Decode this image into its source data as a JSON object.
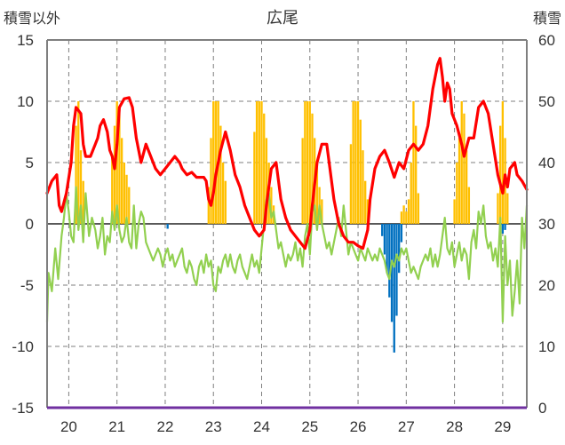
{
  "chart_data": {
    "type": "bar+line",
    "title": "広尾",
    "ylabel_left": "積雪以外",
    "ylabel_right": "積雪",
    "ylim_left": [
      -15,
      15
    ],
    "ylim_right": [
      0,
      60
    ],
    "yticks_left": [
      "15",
      "10",
      "5",
      "0",
      "-5",
      "-10",
      "-15"
    ],
    "yticks_right": [
      "60",
      "50",
      "40",
      "30",
      "20",
      "10",
      "0"
    ],
    "x_range": [
      19.55,
      29.5
    ],
    "xticks": [
      "20",
      "21",
      "22",
      "23",
      "24",
      "25",
      "26",
      "27",
      "28",
      "29"
    ],
    "grid": "dashed",
    "colors": {
      "red_line": "#ff0000",
      "green_line": "#92d050",
      "orange_bars": "#ffc000",
      "blue_bars": "#0070c0",
      "baseline": "#7030a0",
      "frame": "#7f7f7f"
    },
    "red_line": [
      [
        19.55,
        2.5
      ],
      [
        19.65,
        3.5
      ],
      [
        19.75,
        4.0
      ],
      [
        19.8,
        1.5
      ],
      [
        19.85,
        1.0
      ],
      [
        19.95,
        2.5
      ],
      [
        20.05,
        5.0
      ],
      [
        20.1,
        8.0
      ],
      [
        20.15,
        9.5
      ],
      [
        20.25,
        9.0
      ],
      [
        20.3,
        6.5
      ],
      [
        20.35,
        5.5
      ],
      [
        20.45,
        5.5
      ],
      [
        20.55,
        6.5
      ],
      [
        20.6,
        7.0
      ],
      [
        20.65,
        8.0
      ],
      [
        20.72,
        8.5
      ],
      [
        20.8,
        7.5
      ],
      [
        20.85,
        6.0
      ],
      [
        20.9,
        5.5
      ],
      [
        20.95,
        4.5
      ],
      [
        21.0,
        6.5
      ],
      [
        21.05,
        9.5
      ],
      [
        21.15,
        10.2
      ],
      [
        21.25,
        10.3
      ],
      [
        21.32,
        9.5
      ],
      [
        21.4,
        7.0
      ],
      [
        21.45,
        6.0
      ],
      [
        21.5,
        5.0
      ],
      [
        21.6,
        6.5
      ],
      [
        21.7,
        5.5
      ],
      [
        21.8,
        4.5
      ],
      [
        21.9,
        4.0
      ],
      [
        22.0,
        4.5
      ],
      [
        22.1,
        5.0
      ],
      [
        22.2,
        5.5
      ],
      [
        22.3,
        5.0
      ],
      [
        22.35,
        4.5
      ],
      [
        22.45,
        4.0
      ],
      [
        22.55,
        4.2
      ],
      [
        22.65,
        3.8
      ],
      [
        22.8,
        3.8
      ],
      [
        22.85,
        3.5
      ],
      [
        22.9,
        2.0
      ],
      [
        22.95,
        1.5
      ],
      [
        23.0,
        2.5
      ],
      [
        23.05,
        4.0
      ],
      [
        23.1,
        5.0
      ],
      [
        23.15,
        6.0
      ],
      [
        23.25,
        7.5
      ],
      [
        23.35,
        6.0
      ],
      [
        23.45,
        4.0
      ],
      [
        23.55,
        3.0
      ],
      [
        23.65,
        1.5
      ],
      [
        23.75,
        0.5
      ],
      [
        23.85,
        -0.5
      ],
      [
        23.95,
        -1.0
      ],
      [
        24.05,
        -0.5
      ],
      [
        24.1,
        1.5
      ],
      [
        24.15,
        3.0
      ],
      [
        24.2,
        4.5
      ],
      [
        24.3,
        5.0
      ],
      [
        24.35,
        3.5
      ],
      [
        24.4,
        2.0
      ],
      [
        24.5,
        0.5
      ],
      [
        24.6,
        -0.5
      ],
      [
        24.7,
        -1.0
      ],
      [
        24.8,
        -1.5
      ],
      [
        24.9,
        -2.0
      ],
      [
        25.0,
        -0.5
      ],
      [
        25.05,
        1.5
      ],
      [
        25.15,
        5.0
      ],
      [
        25.25,
        6.5
      ],
      [
        25.35,
        6.5
      ],
      [
        25.4,
        5.0
      ],
      [
        25.5,
        2.0
      ],
      [
        25.6,
        0.0
      ],
      [
        25.7,
        -1.0
      ],
      [
        25.8,
        -1.5
      ],
      [
        25.9,
        -1.5
      ],
      [
        26.0,
        -1.8
      ],
      [
        26.1,
        -2.0
      ],
      [
        26.2,
        -0.5
      ],
      [
        26.25,
        2.0
      ],
      [
        26.35,
        4.5
      ],
      [
        26.45,
        5.5
      ],
      [
        26.55,
        6.0
      ],
      [
        26.65,
        5.0
      ],
      [
        26.75,
        3.8
      ],
      [
        26.85,
        5.0
      ],
      [
        26.95,
        4.5
      ],
      [
        27.05,
        6.0
      ],
      [
        27.15,
        6.5
      ],
      [
        27.25,
        6.0
      ],
      [
        27.35,
        6.5
      ],
      [
        27.45,
        8.0
      ],
      [
        27.55,
        11.0
      ],
      [
        27.65,
        13.0
      ],
      [
        27.7,
        13.5
      ],
      [
        27.75,
        12.0
      ],
      [
        27.8,
        10.0
      ],
      [
        27.85,
        11.5
      ],
      [
        27.9,
        11.0
      ],
      [
        27.95,
        9.0
      ],
      [
        28.05,
        8.0
      ],
      [
        28.15,
        6.5
      ],
      [
        28.2,
        5.5
      ],
      [
        28.3,
        7.0
      ],
      [
        28.4,
        7.0
      ],
      [
        28.5,
        9.5
      ],
      [
        28.6,
        10.0
      ],
      [
        28.7,
        9.0
      ],
      [
        28.8,
        6.5
      ],
      [
        28.9,
        4.0
      ],
      [
        29.0,
        2.5
      ],
      [
        29.05,
        4.0
      ],
      [
        29.1,
        3.0
      ],
      [
        29.15,
        4.5
      ],
      [
        29.25,
        5.0
      ],
      [
        29.3,
        4.0
      ],
      [
        29.4,
        3.5
      ],
      [
        29.5,
        2.8
      ]
    ],
    "green_line": [
      [
        19.55,
        -8.0
      ],
      [
        19.58,
        -4.0
      ],
      [
        19.65,
        -5.5
      ],
      [
        19.72,
        -2.0
      ],
      [
        19.78,
        -4.5
      ],
      [
        19.85,
        -1.0
      ],
      [
        19.9,
        0.5
      ],
      [
        19.95,
        2.5
      ],
      [
        20.0,
        1.0
      ],
      [
        20.05,
        -1.0
      ],
      [
        20.1,
        -1.5
      ],
      [
        20.15,
        3.0
      ],
      [
        20.2,
        -0.5
      ],
      [
        20.25,
        1.5
      ],
      [
        20.3,
        -1.5
      ],
      [
        20.35,
        2.5
      ],
      [
        20.42,
        -1.0
      ],
      [
        20.48,
        0.5
      ],
      [
        20.55,
        -0.5
      ],
      [
        20.6,
        -2.0
      ],
      [
        20.65,
        -1.0
      ],
      [
        20.7,
        0.5
      ],
      [
        20.75,
        -2.5
      ],
      [
        20.8,
        -1.0
      ],
      [
        20.85,
        -1.5
      ],
      [
        20.9,
        1.0
      ],
      [
        20.95,
        -0.5
      ],
      [
        21.0,
        1.5
      ],
      [
        21.05,
        -0.5
      ],
      [
        21.1,
        -1.5
      ],
      [
        21.15,
        -1.0
      ],
      [
        21.2,
        0.5
      ],
      [
        21.25,
        -1.5
      ],
      [
        21.3,
        -2.0
      ],
      [
        21.35,
        1.5
      ],
      [
        21.4,
        -2.0
      ],
      [
        21.45,
        0.0
      ],
      [
        21.5,
        1.0
      ],
      [
        21.55,
        0.5
      ],
      [
        21.6,
        -1.5
      ],
      [
        21.65,
        -2.0
      ],
      [
        21.7,
        -2.5
      ],
      [
        21.75,
        -3.0
      ],
      [
        21.8,
        -2.5
      ],
      [
        21.85,
        -2.0
      ],
      [
        21.9,
        -2.5
      ],
      [
        21.95,
        -3.5
      ],
      [
        22.0,
        -2.5
      ],
      [
        22.05,
        -2.0
      ],
      [
        22.1,
        -3.0
      ],
      [
        22.15,
        -2.5
      ],
      [
        22.2,
        -3.5
      ],
      [
        22.25,
        -3.0
      ],
      [
        22.3,
        -2.5
      ],
      [
        22.35,
        -2.0
      ],
      [
        22.4,
        -3.5
      ],
      [
        22.45,
        -4.0
      ],
      [
        22.5,
        -3.0
      ],
      [
        22.55,
        -3.5
      ],
      [
        22.6,
        -4.5
      ],
      [
        22.65,
        -5.0
      ],
      [
        22.7,
        -3.5
      ],
      [
        22.75,
        -3.0
      ],
      [
        22.8,
        -4.0
      ],
      [
        22.85,
        -2.5
      ],
      [
        22.9,
        -3.5
      ],
      [
        22.95,
        -3.0
      ],
      [
        23.0,
        -5.0
      ],
      [
        23.05,
        -5.5
      ],
      [
        23.1,
        -3.5
      ],
      [
        23.15,
        -4.0
      ],
      [
        23.2,
        -3.0
      ],
      [
        23.25,
        -2.5
      ],
      [
        23.3,
        -3.5
      ],
      [
        23.35,
        -2.5
      ],
      [
        23.4,
        -3.5
      ],
      [
        23.45,
        -4.0
      ],
      [
        23.5,
        -3.0
      ],
      [
        23.55,
        -2.5
      ],
      [
        23.6,
        -3.5
      ],
      [
        23.65,
        -4.0
      ],
      [
        23.7,
        -4.5
      ],
      [
        23.75,
        -3.5
      ],
      [
        23.8,
        -2.5
      ],
      [
        23.85,
        -3.5
      ],
      [
        23.9,
        -3.0
      ],
      [
        23.95,
        -4.0
      ],
      [
        24.0,
        -2.0
      ],
      [
        24.05,
        0.0
      ],
      [
        24.1,
        2.0
      ],
      [
        24.15,
        2.5
      ],
      [
        24.2,
        0.5
      ],
      [
        24.25,
        1.0
      ],
      [
        24.3,
        -0.5
      ],
      [
        24.35,
        -2.0
      ],
      [
        24.4,
        -1.5
      ],
      [
        24.45,
        -2.5
      ],
      [
        24.5,
        -3.5
      ],
      [
        24.55,
        -2.5
      ],
      [
        24.6,
        -3.0
      ],
      [
        24.65,
        -2.5
      ],
      [
        24.7,
        -1.5
      ],
      [
        24.75,
        -3.0
      ],
      [
        24.8,
        -2.0
      ],
      [
        24.85,
        -3.5
      ],
      [
        24.9,
        -1.0
      ],
      [
        24.95,
        0.0
      ],
      [
        25.0,
        -2.5
      ],
      [
        25.05,
        1.0
      ],
      [
        25.1,
        1.5
      ],
      [
        25.15,
        -0.5
      ],
      [
        25.2,
        1.5
      ],
      [
        25.25,
        0.0
      ],
      [
        25.3,
        -1.0
      ],
      [
        25.35,
        -2.0
      ],
      [
        25.4,
        -1.5
      ],
      [
        25.45,
        -2.5
      ],
      [
        25.5,
        -1.5
      ],
      [
        25.55,
        -0.5
      ],
      [
        25.6,
        0.5
      ],
      [
        25.65,
        -1.0
      ],
      [
        25.7,
        1.5
      ],
      [
        25.75,
        -0.5
      ],
      [
        25.8,
        -2.5
      ],
      [
        25.85,
        -1.5
      ],
      [
        25.9,
        -2.0
      ],
      [
        25.95,
        -2.5
      ],
      [
        26.0,
        -3.0
      ],
      [
        26.05,
        -2.0
      ],
      [
        26.1,
        -2.5
      ],
      [
        26.15,
        -3.0
      ],
      [
        26.2,
        -2.0
      ],
      [
        26.25,
        -2.5
      ],
      [
        26.3,
        -3.0
      ],
      [
        26.35,
        -2.5
      ],
      [
        26.4,
        -3.0
      ],
      [
        26.45,
        -2.0
      ],
      [
        26.5,
        -2.5
      ],
      [
        26.55,
        -3.0
      ],
      [
        26.6,
        -4.0
      ],
      [
        26.65,
        -4.5
      ],
      [
        26.7,
        -3.0
      ],
      [
        26.75,
        -3.5
      ],
      [
        26.8,
        -2.5
      ],
      [
        26.85,
        -3.0
      ],
      [
        26.9,
        -2.0
      ],
      [
        26.95,
        -2.5
      ],
      [
        27.0,
        -2.0
      ],
      [
        27.05,
        -3.0
      ],
      [
        27.1,
        -4.0
      ],
      [
        27.15,
        -3.5
      ],
      [
        27.2,
        -4.0
      ],
      [
        27.25,
        -4.5
      ],
      [
        27.3,
        -3.5
      ],
      [
        27.35,
        -3.0
      ],
      [
        27.4,
        -2.5
      ],
      [
        27.45,
        -3.0
      ],
      [
        27.5,
        -2.0
      ],
      [
        27.55,
        -3.5
      ],
      [
        27.6,
        -2.5
      ],
      [
        27.65,
        -3.5
      ],
      [
        27.7,
        -2.5
      ],
      [
        27.75,
        -1.0
      ],
      [
        27.8,
        0.5
      ],
      [
        27.85,
        -2.0
      ],
      [
        27.9,
        -2.5
      ],
      [
        27.95,
        -1.5
      ],
      [
        28.0,
        -3.5
      ],
      [
        28.05,
        -2.5
      ],
      [
        28.1,
        -1.5
      ],
      [
        28.15,
        -3.0
      ],
      [
        28.2,
        -2.0
      ],
      [
        28.25,
        -2.5
      ],
      [
        28.3,
        -4.5
      ],
      [
        28.35,
        -1.5
      ],
      [
        28.4,
        -0.5
      ],
      [
        28.45,
        -2.0
      ],
      [
        28.5,
        1.0
      ],
      [
        28.55,
        0.0
      ],
      [
        28.6,
        1.5
      ],
      [
        28.65,
        -1.0
      ],
      [
        28.7,
        -2.0
      ],
      [
        28.75,
        -1.5
      ],
      [
        28.8,
        -3.0
      ],
      [
        28.85,
        -2.0
      ],
      [
        28.9,
        -3.5
      ],
      [
        28.95,
        0.5
      ],
      [
        29.0,
        -8.0
      ],
      [
        29.05,
        -1.0
      ],
      [
        29.1,
        -5.0
      ],
      [
        29.15,
        -3.0
      ],
      [
        29.2,
        -7.5
      ],
      [
        29.25,
        -5.5
      ],
      [
        29.3,
        -3.0
      ],
      [
        29.35,
        -6.5
      ],
      [
        29.4,
        0.5
      ],
      [
        29.45,
        -2.0
      ],
      [
        29.5,
        1.5
      ]
    ],
    "orange_bars": [
      [
        20.15,
        8.0
      ],
      [
        20.2,
        10.0
      ],
      [
        20.25,
        6.0
      ],
      [
        20.3,
        3.5
      ],
      [
        20.9,
        5.5
      ],
      [
        20.95,
        8.0
      ],
      [
        21.0,
        10.0
      ],
      [
        21.05,
        9.0
      ],
      [
        21.1,
        7.0
      ],
      [
        21.15,
        5.0
      ],
      [
        21.2,
        4.0
      ],
      [
        21.25,
        3.0
      ],
      [
        22.9,
        3.0
      ],
      [
        22.95,
        7.0
      ],
      [
        23.0,
        10.0
      ],
      [
        23.05,
        10.0
      ],
      [
        23.1,
        10.0
      ],
      [
        23.15,
        8.0
      ],
      [
        23.2,
        5.0
      ],
      [
        23.25,
        3.5
      ],
      [
        23.85,
        7.5
      ],
      [
        23.9,
        10.0
      ],
      [
        23.95,
        10.0
      ],
      [
        24.0,
        10.0
      ],
      [
        24.05,
        9.0
      ],
      [
        24.1,
        7.0
      ],
      [
        24.15,
        5.0
      ],
      [
        24.2,
        3.0
      ],
      [
        24.25,
        1.5
      ],
      [
        24.85,
        7.0
      ],
      [
        24.9,
        10.0
      ],
      [
        24.95,
        10.0
      ],
      [
        25.0,
        10.0
      ],
      [
        25.05,
        9.0
      ],
      [
        25.1,
        7.0
      ],
      [
        25.15,
        5.0
      ],
      [
        25.2,
        3.0
      ],
      [
        25.25,
        2.0
      ],
      [
        25.85,
        6.5
      ],
      [
        25.9,
        10.0
      ],
      [
        25.95,
        10.0
      ],
      [
        26.0,
        10.0
      ],
      [
        26.05,
        8.5
      ],
      [
        26.1,
        6.0
      ],
      [
        26.15,
        3.5
      ],
      [
        26.2,
        2.0
      ],
      [
        26.9,
        1.0
      ],
      [
        26.95,
        1.5
      ],
      [
        27.0,
        1.0
      ],
      [
        27.05,
        2.0
      ],
      [
        27.1,
        5.0
      ],
      [
        27.15,
        10.0
      ],
      [
        27.2,
        8.0
      ],
      [
        27.25,
        2.5
      ],
      [
        28.0,
        2.0
      ],
      [
        28.05,
        5.0
      ],
      [
        28.1,
        7.0
      ],
      [
        28.15,
        10.0
      ],
      [
        28.2,
        9.0
      ],
      [
        28.25,
        6.0
      ],
      [
        28.3,
        3.0
      ],
      [
        28.9,
        2.5
      ],
      [
        28.95,
        8.0
      ],
      [
        29.0,
        10.0
      ],
      [
        29.05,
        7.0
      ],
      [
        29.1,
        2.5
      ]
    ],
    "blue_bars": [
      [
        22.05,
        -0.4
      ],
      [
        26.5,
        -1.0
      ],
      [
        26.55,
        -2.5
      ],
      [
        26.6,
        -4.0
      ],
      [
        26.65,
        -6.0
      ],
      [
        26.7,
        -8.0
      ],
      [
        26.75,
        -10.5
      ],
      [
        26.8,
        -7.5
      ],
      [
        26.85,
        -4.0
      ],
      [
        26.9,
        -1.5
      ],
      [
        28.95,
        -0.5
      ],
      [
        29.0,
        -0.8
      ],
      [
        29.05,
        -0.5
      ]
    ]
  }
}
